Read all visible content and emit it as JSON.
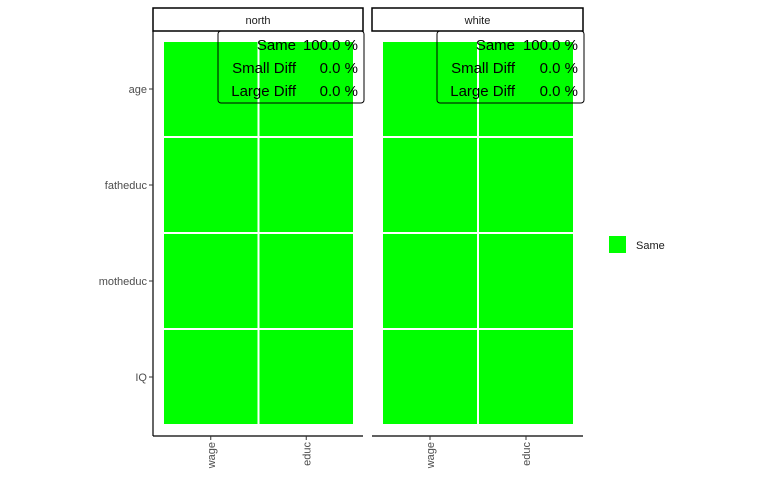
{
  "chart_data": {
    "type": "heatmap",
    "facets": [
      "north",
      "white"
    ],
    "x_categories": [
      "wage",
      "educ"
    ],
    "y_categories": [
      "age",
      "fatheduc",
      "motheduc",
      "IQ"
    ],
    "cells": [
      {
        "facet": "north",
        "values": [
          [
            "Same",
            "Same"
          ],
          [
            "Same",
            "Same"
          ],
          [
            "Same",
            "Same"
          ],
          [
            "Same",
            "Same"
          ]
        ]
      },
      {
        "facet": "white",
        "values": [
          [
            "Same",
            "Same"
          ],
          [
            "Same",
            "Same"
          ],
          [
            "Same",
            "Same"
          ],
          [
            "Same",
            "Same"
          ]
        ]
      }
    ],
    "annotations": [
      {
        "facet": "north",
        "rows": [
          {
            "label": "Same",
            "value": "100.0 %"
          },
          {
            "label": "Small Diff",
            "value": "0.0 %"
          },
          {
            "label": "Large Diff",
            "value": "0.0 %"
          }
        ]
      },
      {
        "facet": "white",
        "rows": [
          {
            "label": "Same",
            "value": "100.0 %"
          },
          {
            "label": "Small Diff",
            "value": "0.0 %"
          },
          {
            "label": "Large Diff",
            "value": "0.0 %"
          }
        ]
      }
    ],
    "legend": {
      "position": "right",
      "entries": [
        {
          "label": "Same",
          "color": "#00FF00"
        }
      ]
    },
    "colors": {
      "Same": "#00FF00"
    },
    "grid": false
  }
}
